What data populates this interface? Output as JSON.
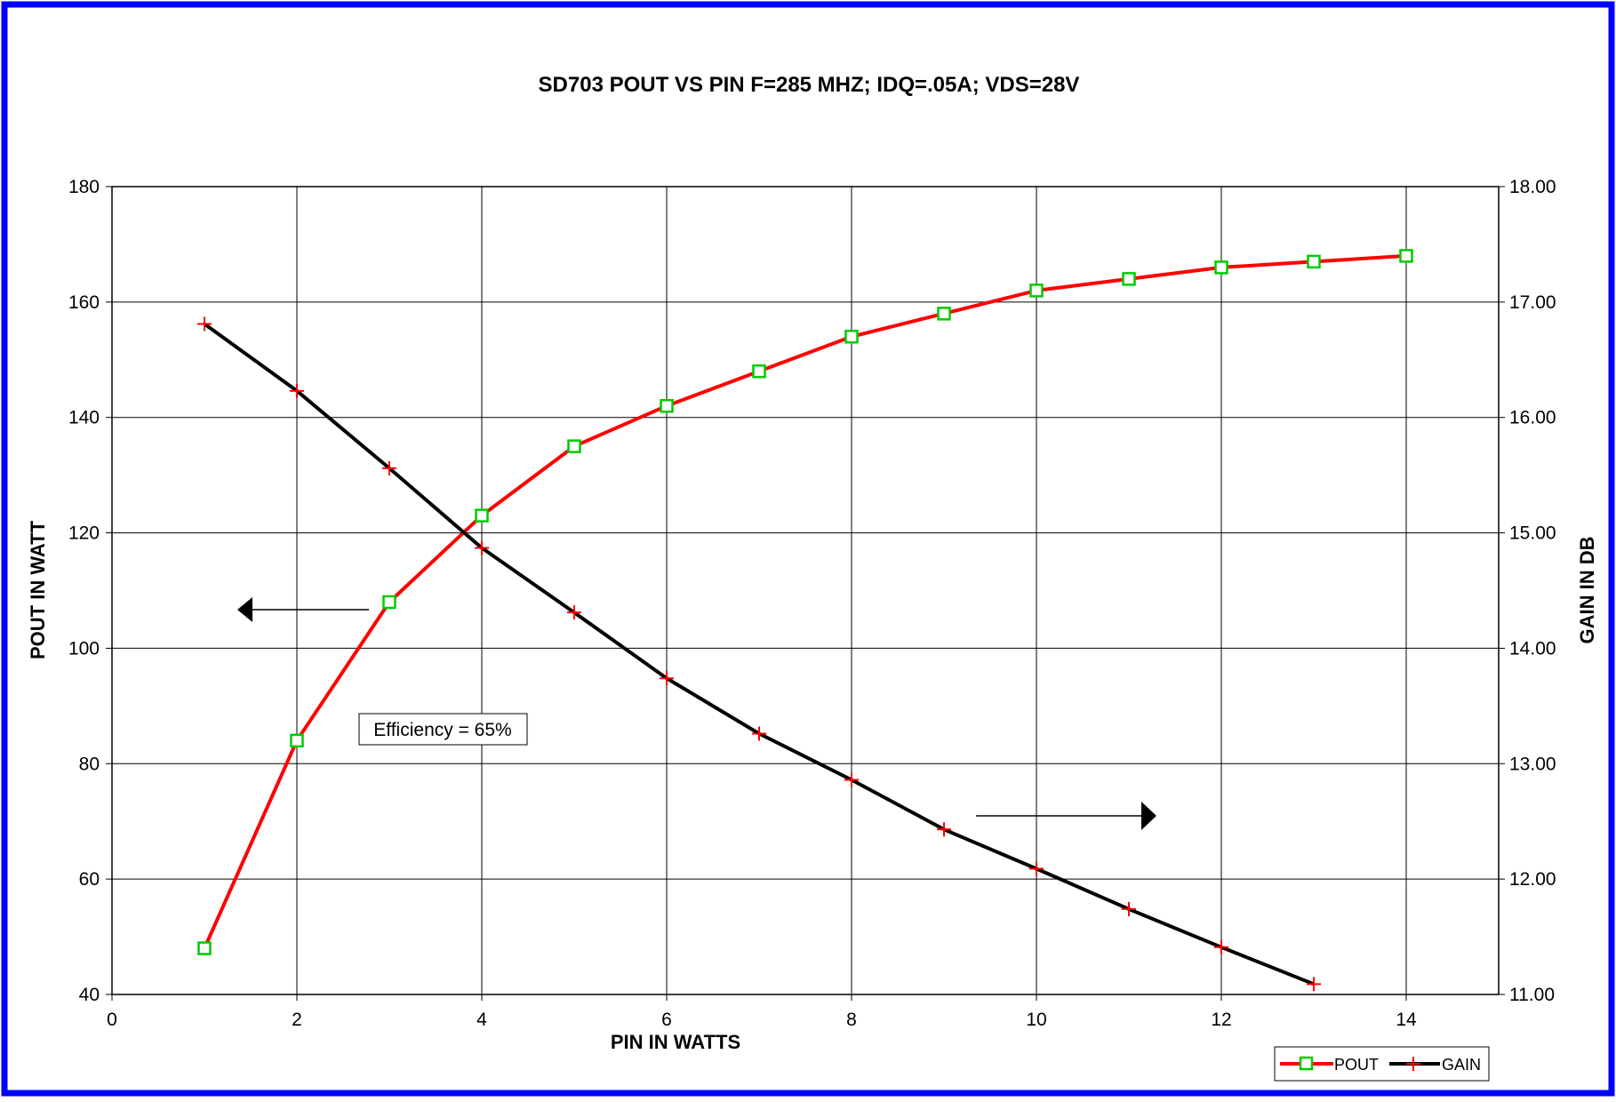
{
  "chart_data": {
    "type": "line",
    "title": "SD703  POUT VS PIN F=285 MHZ; IDQ=.05A; VDS=28V",
    "xlabel": "PIN IN WATTS",
    "ylabel": "POUT IN WATT",
    "y2label": "GAIN IN DB",
    "x_ticks": [
      "0",
      "2",
      "4",
      "6",
      "8",
      "10",
      "12",
      "14"
    ],
    "y_ticks": [
      "40",
      "60",
      "80",
      "100",
      "120",
      "140",
      "160",
      "180"
    ],
    "y2_ticks": [
      "11.00",
      "12.00",
      "13.00",
      "14.00",
      "15.00",
      "16.00",
      "17.00",
      "18.00"
    ],
    "xlim": [
      0,
      15
    ],
    "ylim": [
      40,
      180
    ],
    "y2lim": [
      11,
      18
    ],
    "grid": true,
    "legend_position": "bottom-right",
    "annotation": "Efficiency = 65%",
    "series": [
      {
        "name": "POUT",
        "axis": "left",
        "color": "#ff0000",
        "marker": "square",
        "marker_color": "#00cc00",
        "x": [
          1,
          2,
          3,
          4,
          5,
          6,
          7,
          8,
          9,
          10,
          11,
          12,
          13,
          14
        ],
        "values": [
          48,
          84,
          108,
          123,
          135,
          142,
          148,
          154,
          158,
          162,
          164,
          166,
          167,
          168
        ]
      },
      {
        "name": "GAIN",
        "axis": "right",
        "color": "#000000",
        "marker": "plus",
        "marker_color": "#ff0000",
        "x": [
          1,
          2,
          3,
          4,
          5,
          6,
          7,
          8,
          9,
          10,
          11,
          12,
          13
        ],
        "values": [
          16.81,
          16.23,
          15.56,
          14.87,
          14.31,
          13.74,
          13.26,
          12.86,
          12.43,
          12.09,
          11.74,
          11.41,
          11.09
        ]
      }
    ]
  },
  "colors": {
    "frame": "#0000ff",
    "grid": "#000000"
  }
}
